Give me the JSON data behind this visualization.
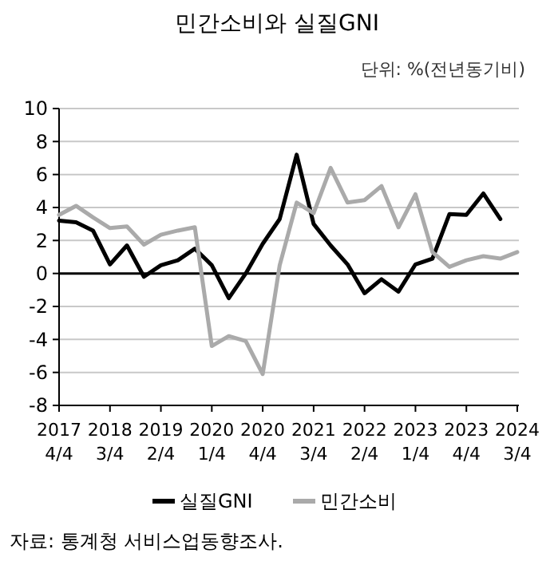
{
  "chart_data": {
    "type": "line",
    "title": "민간소비와 실질GNI",
    "subtitle": "단위: %(전년동기비)",
    "categories": [
      "2017\n4/4",
      null,
      null,
      "2018\n3/4",
      null,
      null,
      "2019\n2/4",
      null,
      null,
      "2020\n1/4",
      null,
      null,
      "2020\n4/4",
      null,
      null,
      "2021\n3/4",
      null,
      null,
      "2022\n2/4",
      null,
      null,
      "2023\n1/4",
      null,
      null,
      "2023\n4/4",
      null,
      null,
      "2024\n3/4"
    ],
    "series": [
      {
        "name": "실질GNI",
        "color": "#000000",
        "values": [
          3.2,
          3.1,
          2.6,
          0.55,
          1.7,
          -0.2,
          0.5,
          0.8,
          1.5,
          0.5,
          -1.5,
          0.0,
          1.8,
          3.3,
          7.2,
          3.0,
          1.7,
          0.55,
          -1.2,
          -0.35,
          -1.1,
          0.55,
          0.9,
          3.6,
          3.55,
          4.85,
          3.3,
          null
        ]
      },
      {
        "name": "민간소비",
        "color": "#aaaaaa",
        "values": [
          3.55,
          4.1,
          3.4,
          2.75,
          2.85,
          1.75,
          2.35,
          2.6,
          2.8,
          -4.4,
          -3.8,
          -4.1,
          -6.1,
          0.5,
          4.3,
          3.65,
          6.4,
          4.3,
          4.45,
          5.3,
          2.8,
          4.8,
          1.3,
          0.4,
          0.8,
          1.05,
          0.9,
          1.3
        ]
      }
    ],
    "ylim": [
      -8,
      10
    ],
    "yticks": [
      -8,
      -6,
      -4,
      -2,
      0,
      2,
      4,
      6,
      8,
      10
    ],
    "grid": "y",
    "legend": "bottom",
    "line_style": "solid",
    "marker": "none",
    "ref_lines": [
      {
        "axis": "y",
        "value": 0,
        "color": "#000000"
      }
    ],
    "annotations": [
      "자료: 통계청 서비스업동향조사."
    ]
  }
}
